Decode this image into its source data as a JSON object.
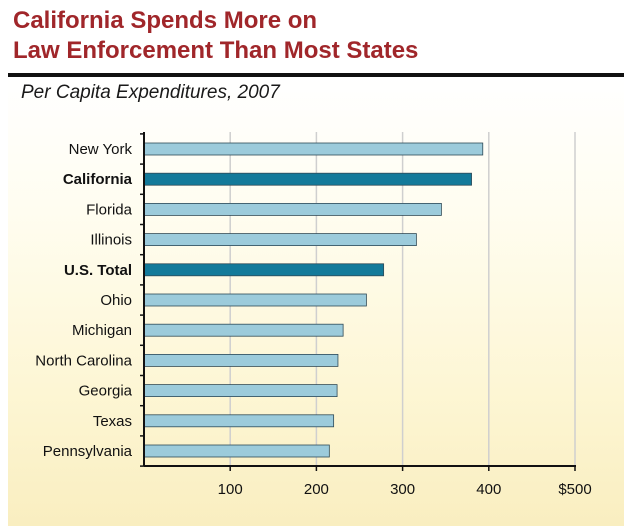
{
  "header": {
    "title_line1": "California Spends More on",
    "title_line2": "Law Enforcement Than Most States",
    "subtitle": "Per Capita Expenditures, 2007"
  },
  "colors": {
    "title": "#a0262a",
    "bar_default": "#9ccbdb",
    "bar_highlight": "#137a9a",
    "gridline": "#cfcfcf",
    "axis": "#111111"
  },
  "chart_data": {
    "type": "bar",
    "orientation": "horizontal",
    "title": "California Spends More on Law Enforcement Than Most States",
    "subtitle": "Per Capita Expenditures, 2007",
    "categories": [
      "New York",
      "California",
      "Florida",
      "Illinois",
      "U.S. Total",
      "Ohio",
      "Michigan",
      "North Carolina",
      "Georgia",
      "Texas",
      "Pennsylvania"
    ],
    "values": [
      393,
      380,
      345,
      316,
      278,
      258,
      231,
      225,
      224,
      220,
      215
    ],
    "highlighted": [
      "California",
      "U.S. Total"
    ],
    "xlim": [
      0,
      500
    ],
    "xticks": [
      100,
      200,
      300,
      400,
      500
    ],
    "xtick_labels": [
      "100",
      "200",
      "300",
      "400",
      "$500"
    ],
    "xlabel": "",
    "ylabel": "",
    "grid": true,
    "legend": "none"
  }
}
